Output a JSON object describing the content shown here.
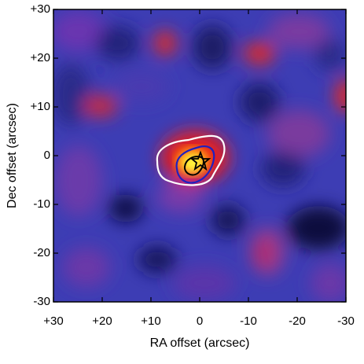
{
  "chart_data": {
    "type": "image",
    "xlabel": "RA offset (arcsec)",
    "ylabel": "Dec offset (arcsec)",
    "xlim": [
      30,
      -30
    ],
    "ylim": [
      -30,
      30
    ],
    "xticks": [
      {
        "value": 30,
        "label": "+30"
      },
      {
        "value": 20,
        "label": "+20"
      },
      {
        "value": 10,
        "label": "+10"
      },
      0,
      -10,
      -20,
      -30
    ],
    "yticks": [
      -30,
      -20,
      -10,
      0,
      {
        "value": 10,
        "label": "+10"
      },
      {
        "value": 20,
        "label": "+20"
      },
      {
        "value": 30,
        "label": "+30"
      }
    ]
  }
}
